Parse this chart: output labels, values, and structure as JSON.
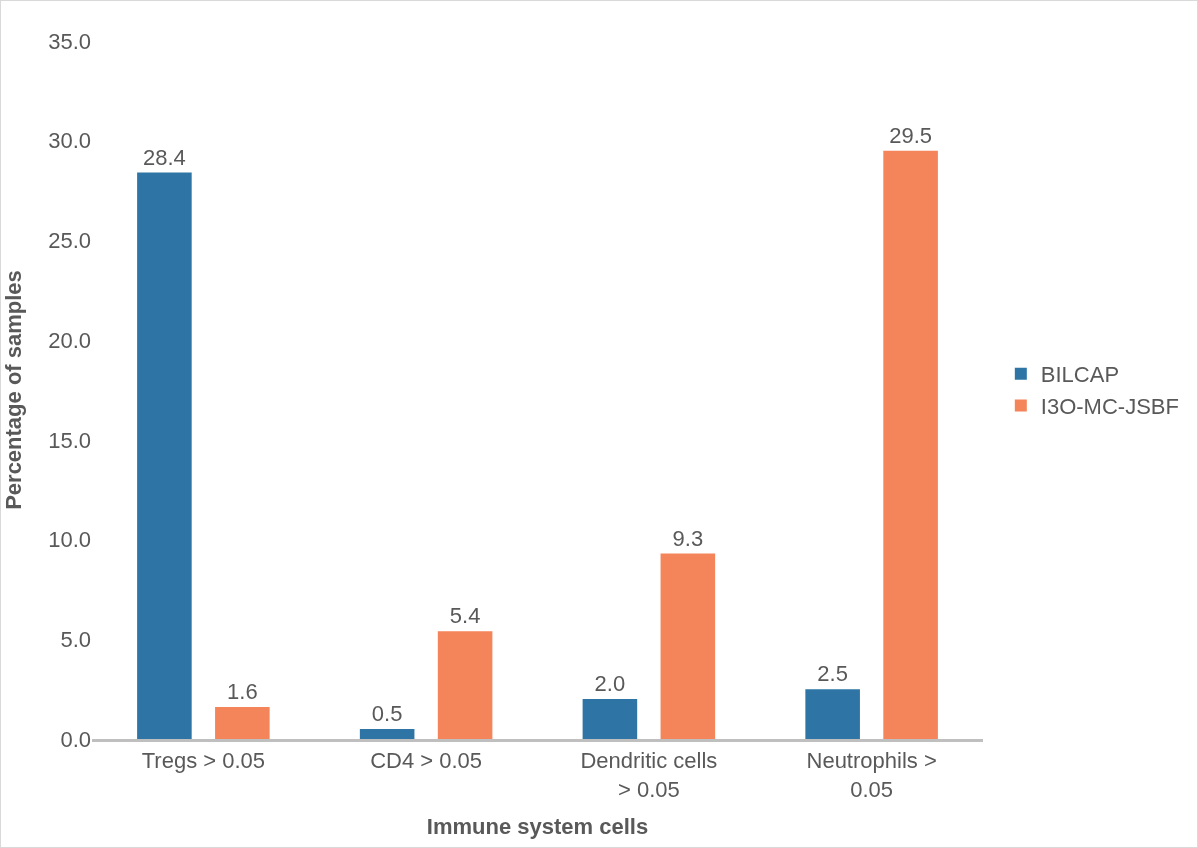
{
  "chart_data": {
    "type": "bar",
    "xlabel": "Immune system cells",
    "ylabel": "Percentage of samples",
    "categories": [
      "Tregs > 0.05",
      "CD4 > 0.05",
      "Dendritic cells > 0.05",
      "Neutrophils > 0.05"
    ],
    "series": [
      {
        "name": "BILCAP",
        "color": "#2e75a6",
        "values": [
          28.4,
          0.5,
          2.0,
          2.5
        ],
        "value_labels": [
          "28.4",
          "0.5",
          "2.0",
          "2.5"
        ]
      },
      {
        "name": "I3O-MC-JSBF",
        "color": "#f4845a",
        "values": [
          1.6,
          5.4,
          9.3,
          29.5
        ],
        "value_labels": [
          "1.6",
          "5.4",
          "9.3",
          "29.5"
        ]
      }
    ],
    "ylim": [
      0,
      35
    ],
    "yticks": [
      {
        "value": 0,
        "label": "0.0"
      },
      {
        "value": 5,
        "label": "5.0"
      },
      {
        "value": 10,
        "label": "10.0"
      },
      {
        "value": 15,
        "label": "15.0"
      },
      {
        "value": 20,
        "label": "20.0"
      },
      {
        "value": 25,
        "label": "25.0"
      },
      {
        "value": 30,
        "label": "30.0"
      },
      {
        "value": 35,
        "label": "35.0"
      }
    ],
    "grid": false,
    "legend": "right"
  }
}
